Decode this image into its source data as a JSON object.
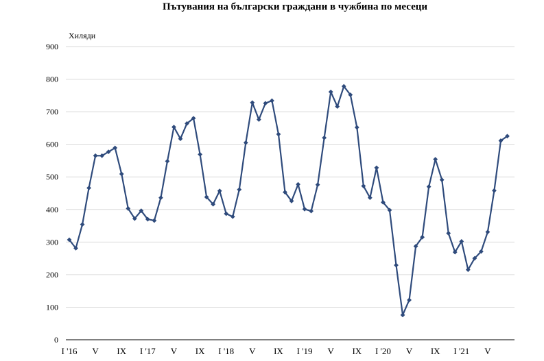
{
  "chart_data": {
    "type": "line",
    "title": "Пътувания на български граждани в чужбина по месеци",
    "ylabel": "Хиляди",
    "xlabel": "",
    "ylim": [
      0,
      900
    ],
    "yticks": [
      0,
      100,
      200,
      300,
      400,
      500,
      600,
      700,
      800,
      900
    ],
    "grid": true,
    "legend": "none",
    "line_color": "#2f4b7c",
    "x_tick_labels": [
      {
        "index": 0,
        "label": "I '16"
      },
      {
        "index": 4,
        "label": "V"
      },
      {
        "index": 8,
        "label": "IX"
      },
      {
        "index": 12,
        "label": "I '17"
      },
      {
        "index": 16,
        "label": "V"
      },
      {
        "index": 20,
        "label": "IX"
      },
      {
        "index": 24,
        "label": "I '18"
      },
      {
        "index": 28,
        "label": "V"
      },
      {
        "index": 32,
        "label": "IX"
      },
      {
        "index": 36,
        "label": "I '19"
      },
      {
        "index": 40,
        "label": "V"
      },
      {
        "index": 44,
        "label": "IX"
      },
      {
        "index": 48,
        "label": "I '20"
      },
      {
        "index": 52,
        "label": "V"
      },
      {
        "index": 56,
        "label": "IX"
      },
      {
        "index": 60,
        "label": "I '21"
      },
      {
        "index": 64,
        "label": "V"
      }
    ],
    "series": [
      {
        "values": [
          307,
          281,
          354,
          466,
          565,
          565,
          577,
          589,
          509,
          403,
          372,
          396,
          370,
          366,
          436,
          548,
          653,
          617,
          664,
          680,
          569,
          438,
          416,
          457,
          387,
          378,
          461,
          605,
          728,
          676,
          726,
          734,
          631,
          453,
          426,
          477,
          401,
          395,
          476,
          620,
          761,
          716,
          778,
          752,
          652,
          472,
          436,
          528,
          422,
          398,
          229,
          76,
          122,
          287,
          315,
          470,
          554,
          491,
          327,
          269,
          302,
          215,
          250,
          271,
          331,
          458,
          611,
          625
        ]
      }
    ]
  }
}
